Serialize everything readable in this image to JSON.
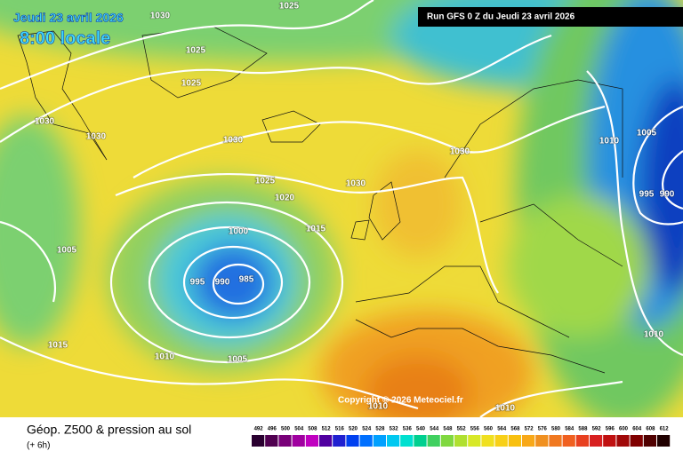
{
  "header": {
    "date": "Jeudi 23 avril 2026",
    "time": "8:00 locale",
    "run": "Run GFS 0 Z du Jeudi 23 avril 2026"
  },
  "map": {
    "copyright": "Copyright © 2026 Meteociel.fr",
    "isobar_labels": [
      "1030",
      "1025",
      "1025",
      "1025",
      "1030",
      "1030",
      "1030",
      "1025",
      "1020",
      "1015",
      "1000",
      "1005",
      "995",
      "990",
      "985",
      "1015",
      "1010",
      "1005",
      "1030",
      "1030",
      "1010",
      "1005",
      "995",
      "990",
      "1010",
      "1010",
      "1010"
    ]
  },
  "legend": {
    "title": "Géop. Z500 & pression au sol",
    "lead": "(+ 6h)",
    "scale": [
      492,
      496,
      500,
      504,
      508,
      512,
      516,
      520,
      524,
      528,
      532,
      536,
      540,
      544,
      548,
      552,
      556,
      560,
      564,
      568,
      572,
      576,
      580,
      584,
      588,
      592,
      596,
      600,
      604,
      608,
      612
    ]
  }
}
